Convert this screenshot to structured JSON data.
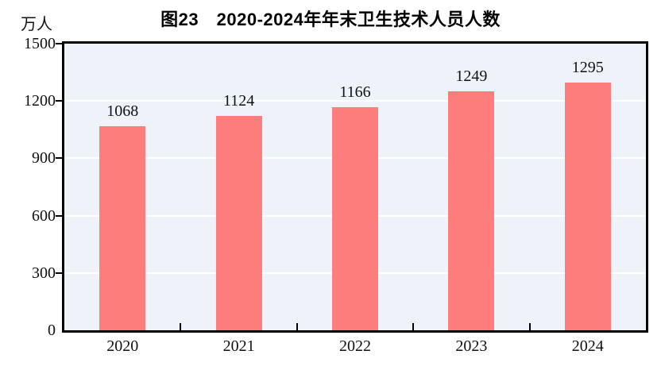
{
  "chart_data": {
    "type": "bar",
    "title": "图23　2020-2024年年末卫生技术人员人数",
    "unit_label": "万人",
    "categories": [
      "2020",
      "2021",
      "2022",
      "2023",
      "2024"
    ],
    "values": [
      1068,
      1124,
      1166,
      1249,
      1295
    ],
    "xlabel": "",
    "ylabel": "万人",
    "ylim": [
      0,
      1500
    ],
    "yticks": [
      0,
      300,
      600,
      900,
      1200,
      1500
    ],
    "grid": "horizontal",
    "legend": "none",
    "data_labels": true,
    "colors": {
      "bar": "#fd7d7d",
      "plot_background": "#edf3f8",
      "gridline": "#ffffff",
      "axis": "#000000",
      "text": "#111111"
    }
  }
}
